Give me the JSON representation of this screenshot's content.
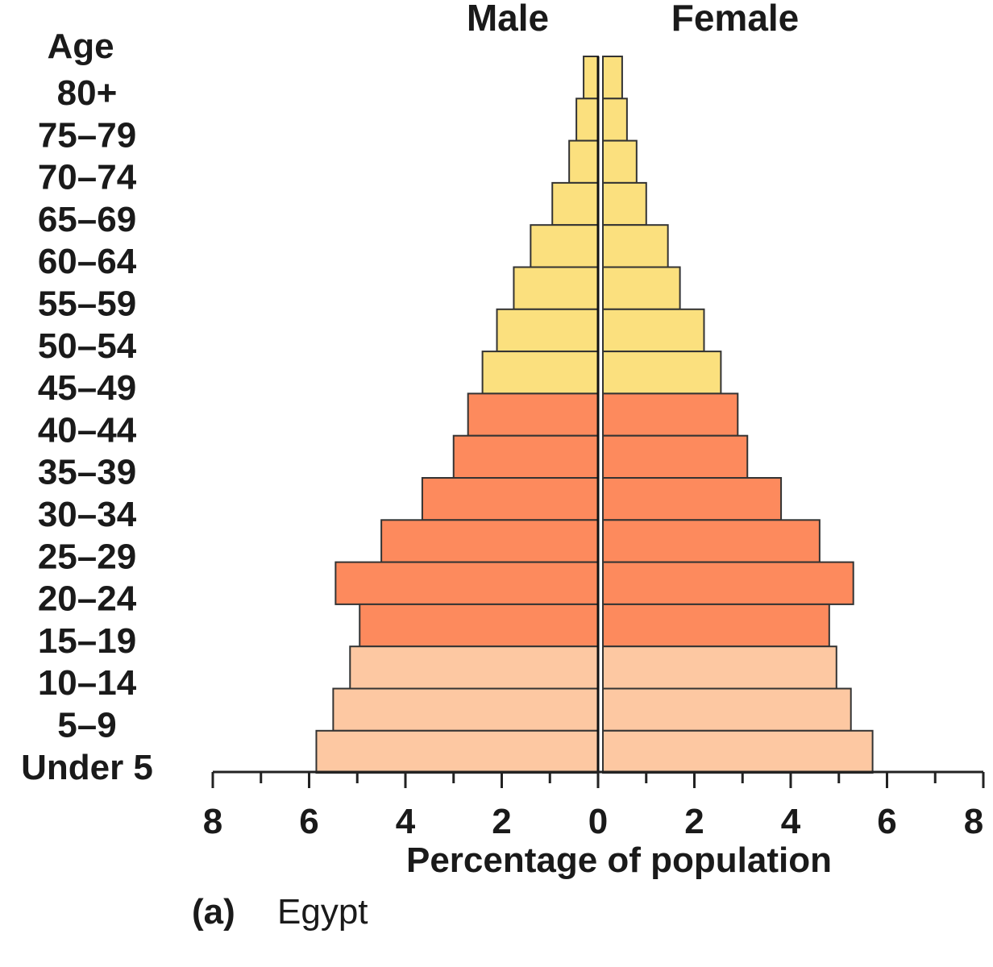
{
  "chart_data": {
    "type": "bar",
    "orientation": "horizontal-pyramid",
    "age_header": "Age",
    "categories": [
      "80+",
      "75–79",
      "70–74",
      "65–69",
      "60–64",
      "55–59",
      "50–54",
      "45–49",
      "40–44",
      "35–39",
      "30–34",
      "25–29",
      "20–24",
      "15–19",
      "10–14",
      "5–9",
      "Under 5"
    ],
    "series": [
      {
        "name": "Male",
        "side": "left",
        "values": [
          0.3,
          0.45,
          0.6,
          0.95,
          1.4,
          1.75,
          2.1,
          2.4,
          2.7,
          3.0,
          3.65,
          4.5,
          5.45,
          4.95,
          5.15,
          5.5,
          5.85
        ]
      },
      {
        "name": "Female",
        "side": "right",
        "values": [
          0.4,
          0.5,
          0.7,
          0.9,
          1.35,
          1.6,
          2.1,
          2.45,
          2.8,
          3.0,
          3.7,
          4.5,
          5.2,
          4.7,
          4.85,
          5.15,
          5.6
        ]
      }
    ],
    "bands": [
      {
        "categories": [
          "80+",
          "75–79",
          "70–74",
          "65–69",
          "60–64",
          "55–59",
          "50–54",
          "45–49"
        ],
        "color": "#fbe07e"
      },
      {
        "categories": [
          "40–44",
          "35–39",
          "30–34",
          "25–29",
          "20–24",
          "15–19"
        ],
        "color": "#fd8a5d"
      },
      {
        "categories": [
          "10–14",
          "5–9",
          "Under 5"
        ],
        "color": "#fdc8a2"
      }
    ],
    "xticks": [
      8,
      6,
      4,
      2,
      0,
      2,
      4,
      6,
      8
    ],
    "xlim": [
      -8,
      8
    ],
    "xlabel": "Percentage of population",
    "caption_letter": "(a)",
    "caption_text": "Egypt"
  }
}
